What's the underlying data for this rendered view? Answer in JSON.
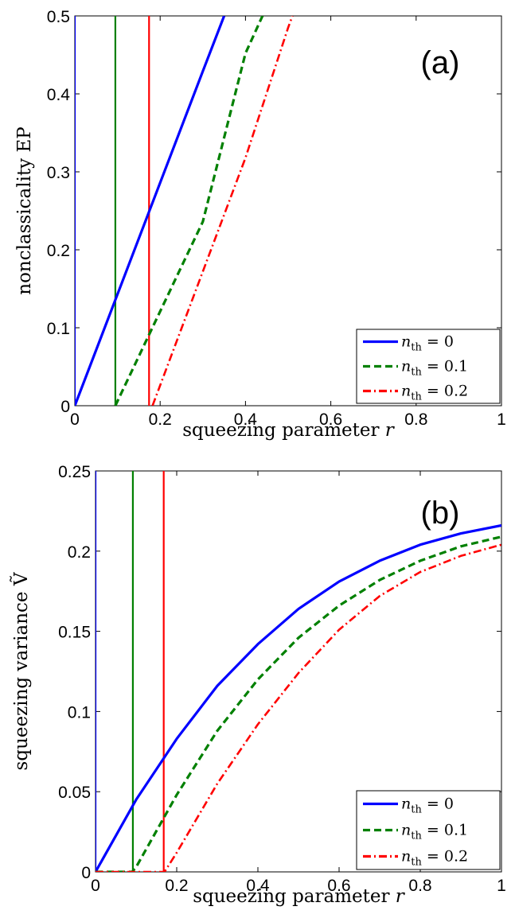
{
  "chart_data": [
    {
      "type": "line",
      "panel_label": "(a)",
      "xlabel": "squeezing parameter r",
      "ylabel": "nonclassicality EP",
      "xlim": [
        0,
        1
      ],
      "ylim": [
        0,
        0.5
      ],
      "x_ticks": [
        "0",
        "0.2",
        "0.4",
        "0.6",
        "0.8",
        "1"
      ],
      "y_ticks": [
        "0",
        "0.1",
        "0.2",
        "0.3",
        "0.4",
        "0.5"
      ],
      "legend_position": "bottom-right",
      "series": [
        {
          "name": "n_th = 0",
          "color": "#0000ff",
          "style": "solid",
          "x": [
            0.0,
            0.1,
            0.2,
            0.3,
            0.35
          ],
          "y": [
            0.0,
            0.143,
            0.286,
            0.429,
            0.5
          ]
        },
        {
          "name": "n_th = 0.1",
          "color": "#008000",
          "style": "dashed",
          "x": [
            0.095,
            0.2,
            0.3,
            0.4,
            0.44
          ],
          "y": [
            0.0,
            0.121,
            0.236,
            0.452,
            0.5
          ]
        },
        {
          "name": "n_th = 0.2",
          "color": "#ff0000",
          "style": "dashdot",
          "x": [
            0.182,
            0.3,
            0.4,
            0.5,
            0.51
          ],
          "y": [
            0.0,
            0.172,
            0.318,
            0.485,
            0.5
          ]
        }
      ],
      "vlines": [
        {
          "x": 0.0,
          "color": "#0000ff"
        },
        {
          "x": 0.095,
          "color": "#008000"
        },
        {
          "x": 0.174,
          "color": "#ff0000"
        }
      ],
      "legend": [
        "n_th = 0",
        "n_th = 0.1",
        "n_th = 0.2"
      ]
    },
    {
      "type": "line",
      "panel_label": "(b)",
      "xlabel": "squeezing parameter r",
      "ylabel": "squeezing variance Ṽ",
      "xlim": [
        0,
        1
      ],
      "ylim": [
        0,
        0.25
      ],
      "x_ticks": [
        "0",
        "0.2",
        "0.4",
        "0.6",
        "0.8",
        "1"
      ],
      "y_ticks": [
        "0",
        "0.05",
        "0.1",
        "0.15",
        "0.2",
        "0.25"
      ],
      "legend_position": "bottom-right",
      "series": [
        {
          "name": "n_th = 0",
          "color": "#0000ff",
          "style": "solid",
          "x": [
            0.0,
            0.1,
            0.2,
            0.3,
            0.4,
            0.5,
            0.6,
            0.7,
            0.8,
            0.9,
            1.0
          ],
          "y": [
            0.0,
            0.045,
            0.083,
            0.116,
            0.142,
            0.164,
            0.181,
            0.194,
            0.204,
            0.211,
            0.216
          ]
        },
        {
          "name": "n_th = 0.1",
          "color": "#008000",
          "style": "dashed",
          "x": [
            0.0,
            0.09,
            0.1,
            0.2,
            0.3,
            0.4,
            0.5,
            0.6,
            0.7,
            0.8,
            0.9,
            1.0
          ],
          "y": [
            0.0,
            0.0,
            0.003,
            0.048,
            0.088,
            0.12,
            0.146,
            0.166,
            0.182,
            0.194,
            0.203,
            0.209
          ]
        },
        {
          "name": "n_th = 0.2",
          "color": "#ff0000",
          "style": "dashdot",
          "x": [
            0.0,
            0.17,
            0.2,
            0.3,
            0.4,
            0.5,
            0.6,
            0.7,
            0.8,
            0.9,
            1.0
          ],
          "y": [
            0.0,
            0.0,
            0.012,
            0.055,
            0.092,
            0.124,
            0.151,
            0.172,
            0.187,
            0.197,
            0.204
          ]
        }
      ],
      "vlines": [
        {
          "x": 0.0,
          "color": "#0000ff"
        },
        {
          "x": 0.092,
          "color": "#008000"
        },
        {
          "x": 0.168,
          "color": "#ff0000"
        }
      ],
      "legend": [
        "n_th = 0",
        "n_th = 0.1",
        "n_th = 0.2"
      ]
    }
  ]
}
